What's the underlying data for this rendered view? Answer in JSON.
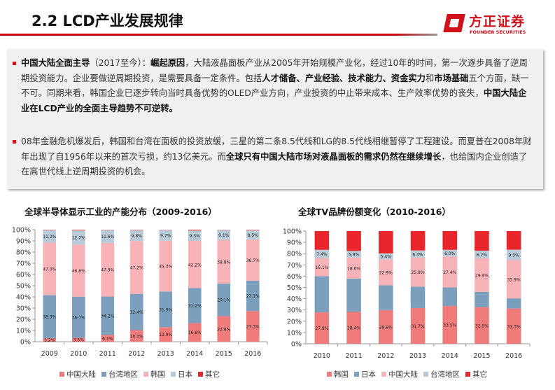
{
  "header": {
    "title": "2.2 LCD产业发展规律",
    "logo_cn": "方正证券",
    "logo_en": "FOUNDER SECURITIES"
  },
  "box": {
    "paragraphs": [
      [
        {
          "t": "中国大陆全面主导",
          "b": true
        },
        {
          "t": "（2017至今）：",
          "b": false
        },
        {
          "t": "崛起原因",
          "b": true
        },
        {
          "t": "，大陆液晶面板产业从2005年开始规模产业化，经过10年的时间，第一次逐步具备了逆周期投资能力。企业要做逆周期投资，是需要具备一定条件。包括",
          "b": false
        },
        {
          "t": "人才储备、产业经验、技术能力、资金实力",
          "b": true
        },
        {
          "t": "和",
          "b": false
        },
        {
          "t": "市场基础",
          "b": true
        },
        {
          "t": "五个方面，缺一不可。同期来看，韩国企业已逐步转向当时具备优势的OLED产业方向，产业投资的中止带来成本、生产效率优势的丧失，",
          "b": false
        },
        {
          "t": "中国大陆企业在LCD产业的全面主导趋势不可逆转。",
          "b": true
        }
      ],
      [
        {
          "t": "08年金融危机爆发后，韩国和台湾在面板的投资放缓，三星的第二条8.5代线和LG的8.5代线相继暂停了工程建设。而夏普在2008年财年出现了自1956年以来的首次亏损，约13亿美元。而",
          "b": false
        },
        {
          "t": "全球只有中国大陆市场对液晶面板的需求仍然在继续增长",
          "b": true
        },
        {
          "t": "，也给国内企业创造了在高世代线上逆周期投资的机会。",
          "b": false
        }
      ]
    ]
  },
  "chart_data": [
    {
      "type": "bar",
      "stacked": true,
      "title": "全球半导体显示工业的产能分布（2009-2016）",
      "ylim": [
        0,
        100
      ],
      "yticks": [
        "0%",
        "10%",
        "20%",
        "30%",
        "40%",
        "50%",
        "60%",
        "70%",
        "80%",
        "90%",
        "100%"
      ],
      "categories": [
        "2009",
        "2010",
        "2011",
        "2012",
        "2013",
        "2014",
        "2015",
        "2016"
      ],
      "series": [
        {
          "name": "中国大陆",
          "color": "#f07b7b",
          "values": [
            3.2,
            3.5,
            6.1,
            10.3,
            12.9,
            16.6,
            22.8,
            27.3
          ],
          "labels": [
            "3.2%",
            "3.5%",
            "6.1%",
            "10.3%",
            "12.9%",
            "16.6%",
            "22.8%",
            "27.3%"
          ]
        },
        {
          "name": "台湾地区",
          "color": "#7b9fbd",
          "values": [
            38.3,
            36.7,
            34.2,
            32.4,
            31.9,
            31.2,
            29.1,
            27.1
          ],
          "labels": [
            "38.3%",
            "36.7%",
            "34.2%",
            "32.4%",
            "31.9%",
            "31.2%",
            "29.1%",
            "27.1%"
          ]
        },
        {
          "name": "韩国",
          "color": "#f7b3b8",
          "values": [
            47.0,
            46.6,
            47.9,
            47.2,
            45.3,
            42.2,
            38.8,
            36.7
          ],
          "labels": [
            "47.0%",
            "46.6%",
            "47.9%",
            "47.2%",
            "45.3%",
            "42.2%",
            "38.8%",
            "36.7%"
          ]
        },
        {
          "name": "日本",
          "color": "#b9cbd8",
          "values": [
            11.2,
            12.7,
            11.6,
            9.8,
            9.7,
            9.3,
            9.1,
            8.5
          ],
          "labels": [
            "11.2%",
            "12.7%",
            "11.6%",
            "9.8%",
            "9.7%",
            "9.3%",
            "9.1%",
            "8.5%"
          ]
        },
        {
          "name": "其它",
          "color": "#e8262c",
          "values": [
            0.3,
            0.5,
            0.2,
            0.3,
            0.2,
            0.7,
            0.2,
            0.4
          ],
          "labels": null
        }
      ]
    },
    {
      "type": "bar",
      "stacked": true,
      "title": "全球TV品牌份额变化（2010-2016）",
      "ylim": [
        0,
        100
      ],
      "yticks": [
        "0%",
        "10%",
        "20%",
        "30%",
        "40%",
        "50%",
        "60%",
        "70%",
        "80%",
        "90%",
        "100%"
      ],
      "categories": [
        "2010",
        "2011",
        "2012",
        "2013",
        "2014",
        "2015",
        "2016"
      ],
      "series": [
        {
          "name": "韩国",
          "color": "#f07b7b",
          "values": [
            27.9,
            28.4,
            29.9,
            31.7,
            33.5,
            32.5,
            31.3
          ],
          "labels": [
            "27.9%",
            "28.4%",
            "29.9%",
            "31.7%",
            "33.5%",
            "32.5%",
            "31.3%"
          ]
        },
        {
          "name": "日本",
          "color": "#7b9fbd",
          "values": [
            32,
            29.5,
            22,
            19,
            16.5,
            13.5,
            9
          ],
          "labels": null
        },
        {
          "name": "中国大陆",
          "color": "#f7b3b8",
          "values": [
            16.1,
            18.6,
            22.9,
            25.8,
            27.4,
            29.9,
            33.9
          ],
          "labels": [
            "16.1%",
            "18.6%",
            "22.9%",
            "25.8%",
            "27.4%",
            "29.9%",
            "33.9%"
          ]
        },
        {
          "name": "台湾地区",
          "color": "#b9cbd8",
          "values": [
            7.4,
            5.9,
            5.4,
            6.3,
            6.0,
            6.7,
            9.3
          ],
          "labels": [
            "7.4%",
            "5.9%",
            "5.4%",
            "6.3%",
            "6.0%",
            "6.7%",
            "9.3%"
          ]
        },
        {
          "name": "其它",
          "color": "#e8262c",
          "values": [
            16.6,
            17.6,
            19.8,
            17.2,
            16.6,
            17.4,
            16.5
          ],
          "labels": null
        }
      ]
    }
  ]
}
